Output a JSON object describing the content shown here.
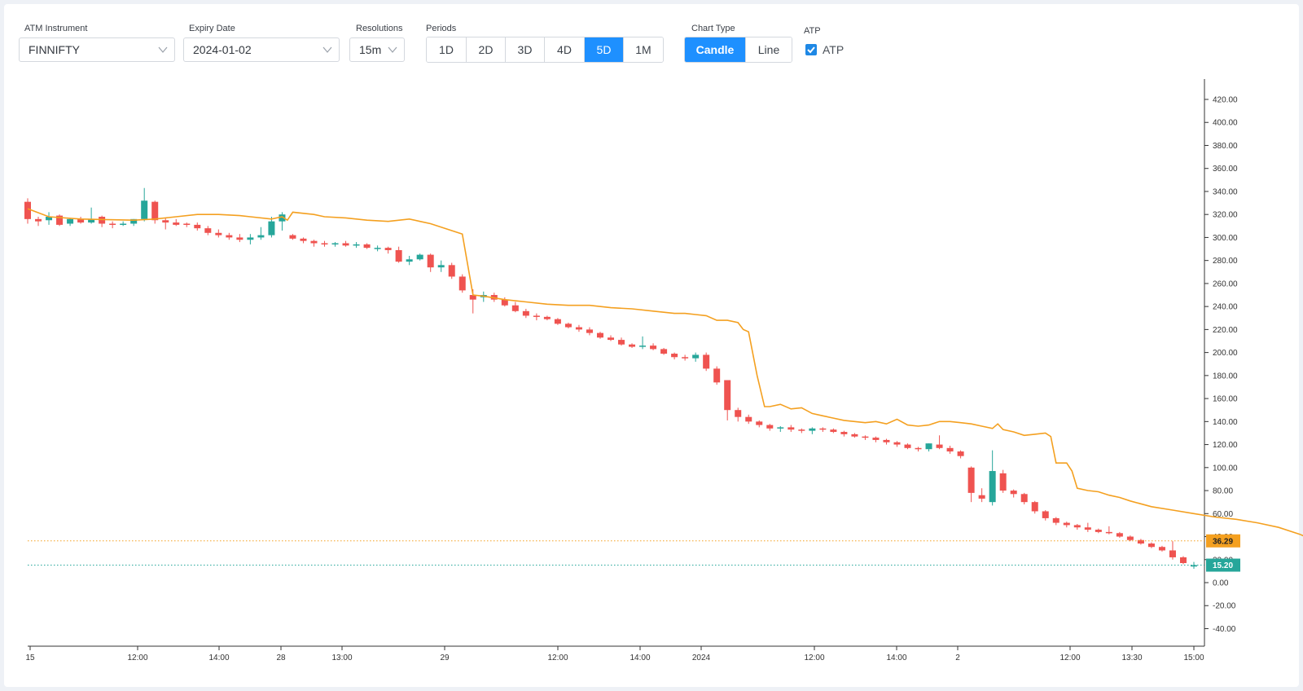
{
  "controls": {
    "instrument": {
      "label": "ATM Instrument",
      "value": "FINNIFTY"
    },
    "expiry": {
      "label": "Expiry Date",
      "value": "2024-01-02"
    },
    "resolution": {
      "label": "Resolutions",
      "value": "15m"
    },
    "periods": {
      "label": "Periods",
      "options": [
        "1D",
        "2D",
        "3D",
        "4D",
        "5D",
        "1M"
      ],
      "selected": "5D"
    },
    "chart_type": {
      "label": "Chart Type",
      "options": [
        "Candle",
        "Line"
      ],
      "selected": "Candle"
    },
    "atp": {
      "label": "ATP",
      "checkbox_label": "ATP",
      "checked": true
    }
  },
  "colors": {
    "accent": "#1e90ff",
    "up": "#26a69a",
    "down": "#ef5350",
    "atp_line": "#f4a020"
  },
  "chart_data": {
    "type": "candlestick",
    "series": [
      {
        "name": "ATP"
      }
    ],
    "y_ticks": [
      "420.00",
      "400.00",
      "380.00",
      "360.00",
      "340.00",
      "320.00",
      "300.00",
      "280.00",
      "260.00",
      "240.00",
      "220.00",
      "200.00",
      "180.00",
      "160.00",
      "140.00",
      "120.00",
      "100.00",
      "80.00",
      "60.00",
      "40.00",
      "20.00",
      "0.00",
      "-20.00",
      "-40.00"
    ],
    "ylim": [
      -50,
      430
    ],
    "x_ticks": [
      "15",
      "12:00",
      "14:00",
      "28",
      "13:00",
      "29",
      "12:00",
      "14:00",
      "2024",
      "12:00",
      "14:00",
      "2",
      "12:00",
      "13:30",
      "15:00"
    ],
    "price_labels": [
      {
        "name": "ATP",
        "value": "36.29",
        "color": "#f4a020"
      },
      {
        "name": "last",
        "value": "15.20",
        "color": "#26a69a"
      }
    ],
    "candles": [
      [
        331,
        334,
        312,
        316
      ],
      [
        316,
        318,
        310,
        314
      ],
      [
        315,
        322,
        311,
        318
      ],
      [
        319,
        320,
        310,
        311
      ],
      [
        312,
        317,
        310,
        316
      ],
      [
        316,
        318,
        312,
        313
      ],
      [
        313,
        326,
        312,
        316
      ],
      [
        318,
        319,
        309,
        312
      ],
      [
        312,
        314,
        308,
        311
      ],
      [
        311,
        314,
        310,
        312
      ],
      [
        312,
        316,
        310,
        316
      ],
      [
        316,
        343,
        314,
        332
      ],
      [
        331,
        332,
        312,
        315
      ],
      [
        315,
        317,
        307,
        313
      ],
      [
        313,
        316,
        310,
        311
      ],
      [
        312,
        313,
        309,
        311
      ],
      [
        311,
        313,
        306,
        308
      ],
      [
        308,
        310,
        302,
        304
      ],
      [
        304,
        307,
        300,
        302
      ],
      [
        302,
        304,
        298,
        300
      ],
      [
        300,
        303,
        296,
        298
      ],
      [
        298,
        303,
        294,
        300
      ],
      [
        300,
        309,
        298,
        302
      ],
      [
        302,
        318,
        300,
        314
      ],
      [
        314,
        322,
        306,
        320
      ],
      [
        302,
        303,
        298,
        299
      ],
      [
        299,
        300,
        295,
        297
      ],
      [
        297,
        298,
        292,
        295
      ],
      [
        295,
        297,
        292,
        294
      ],
      [
        294,
        296,
        292,
        295
      ],
      [
        295,
        297,
        292,
        293
      ],
      [
        293,
        296,
        291,
        294
      ],
      [
        294,
        295,
        290,
        291
      ],
      [
        291,
        293,
        288,
        291
      ],
      [
        291,
        292,
        286,
        289
      ],
      [
        289,
        292,
        278,
        279
      ],
      [
        279,
        284,
        276,
        281
      ],
      [
        281,
        286,
        280,
        285
      ],
      [
        285,
        286,
        270,
        274
      ],
      [
        274,
        280,
        270,
        276
      ],
      [
        276,
        278,
        264,
        266
      ],
      [
        266,
        268,
        252,
        254
      ],
      [
        250,
        255,
        234,
        246
      ],
      [
        248,
        253,
        244,
        250
      ],
      [
        250,
        252,
        244,
        246
      ],
      [
        246,
        248,
        240,
        241
      ],
      [
        241,
        244,
        235,
        236
      ],
      [
        236,
        238,
        230,
        232
      ],
      [
        232,
        234,
        228,
        231
      ],
      [
        231,
        232,
        228,
        229
      ],
      [
        229,
        230,
        224,
        225
      ],
      [
        225,
        226,
        221,
        222
      ],
      [
        222,
        224,
        218,
        220
      ],
      [
        220,
        222,
        215,
        217
      ],
      [
        217,
        218,
        212,
        213
      ],
      [
        213,
        215,
        210,
        211
      ],
      [
        211,
        213,
        206,
        207
      ],
      [
        207,
        208,
        204,
        205
      ],
      [
        205,
        214,
        203,
        206
      ],
      [
        206,
        208,
        202,
        203
      ],
      [
        203,
        204,
        198,
        199
      ],
      [
        199,
        200,
        194,
        196
      ],
      [
        196,
        198,
        193,
        195
      ],
      [
        195,
        200,
        192,
        198
      ],
      [
        198,
        200,
        184,
        186
      ],
      [
        186,
        188,
        172,
        174
      ],
      [
        176,
        176,
        141,
        150
      ],
      [
        150,
        152,
        140,
        144
      ],
      [
        144,
        146,
        138,
        140
      ],
      [
        140,
        141,
        135,
        137
      ],
      [
        137,
        138,
        132,
        134
      ],
      [
        134,
        136,
        131,
        135
      ],
      [
        135,
        137,
        131,
        133
      ],
      [
        133,
        134,
        130,
        132
      ],
      [
        132,
        135,
        129,
        134
      ],
      [
        134,
        135,
        131,
        133
      ],
      [
        133,
        134,
        130,
        131
      ],
      [
        131,
        132,
        127,
        129
      ],
      [
        129,
        130,
        126,
        127
      ],
      [
        127,
        128,
        124,
        126
      ],
      [
        126,
        127,
        122,
        124
      ],
      [
        124,
        125,
        120,
        122
      ],
      [
        122,
        123,
        118,
        120
      ],
      [
        120,
        121,
        116,
        117
      ],
      [
        117,
        118,
        114,
        116
      ],
      [
        116,
        121,
        114,
        121
      ],
      [
        120,
        128,
        116,
        117
      ],
      [
        117,
        119,
        112,
        114
      ],
      [
        114,
        115,
        108,
        110
      ],
      [
        100,
        101,
        70,
        78
      ],
      [
        76,
        82,
        70,
        73
      ],
      [
        70,
        115,
        67,
        97
      ],
      [
        95,
        98,
        78,
        80
      ],
      [
        80,
        81,
        74,
        77
      ],
      [
        77,
        78,
        68,
        70
      ],
      [
        70,
        71,
        60,
        62
      ],
      [
        62,
        63,
        54,
        56
      ],
      [
        56,
        57,
        50,
        52
      ],
      [
        52,
        53,
        48,
        50
      ],
      [
        50,
        51,
        46,
        48
      ],
      [
        48,
        52,
        44,
        46
      ],
      [
        46,
        47,
        43,
        44
      ],
      [
        44,
        49,
        42,
        43
      ],
      [
        43,
        44,
        39,
        40
      ],
      [
        40,
        41,
        36,
        37
      ],
      [
        37,
        38,
        33,
        34
      ],
      [
        34,
        35,
        30,
        31
      ],
      [
        31,
        32,
        27,
        28
      ],
      [
        28,
        36,
        20,
        22
      ],
      [
        22,
        23,
        16,
        17
      ],
      [
        14,
        18,
        12,
        15.2
      ]
    ],
    "atp": [
      [
        0,
        325
      ],
      [
        2,
        318
      ],
      [
        5,
        316
      ],
      [
        10,
        315
      ],
      [
        12,
        316
      ],
      [
        14,
        318
      ],
      [
        16,
        320
      ],
      [
        18,
        320
      ],
      [
        20,
        319
      ],
      [
        21,
        318
      ],
      [
        23,
        316
      ],
      [
        24,
        318
      ],
      [
        24.5,
        315
      ],
      [
        25,
        322
      ],
      [
        27,
        320
      ],
      [
        28,
        318
      ],
      [
        30,
        317
      ],
      [
        32,
        315
      ],
      [
        34,
        314
      ],
      [
        36,
        316
      ],
      [
        37,
        314
      ],
      [
        38,
        312
      ],
      [
        40,
        306
      ],
      [
        41,
        303
      ],
      [
        42,
        250
      ],
      [
        43,
        249
      ],
      [
        45,
        246
      ],
      [
        47,
        244
      ],
      [
        49,
        242
      ],
      [
        51,
        241
      ],
      [
        53,
        241
      ],
      [
        55,
        239
      ],
      [
        57,
        238
      ],
      [
        59,
        236
      ],
      [
        61,
        234
      ],
      [
        62,
        234
      ],
      [
        63,
        233
      ],
      [
        64,
        232
      ],
      [
        65,
        228
      ],
      [
        66,
        228
      ],
      [
        67,
        226
      ],
      [
        67.5,
        220
      ],
      [
        68,
        218
      ],
      [
        68.8,
        180
      ],
      [
        69.5,
        153
      ],
      [
        70,
        153
      ],
      [
        71,
        155
      ],
      [
        72,
        151
      ],
      [
        73,
        152
      ],
      [
        74,
        147
      ],
      [
        75,
        145
      ],
      [
        76,
        143
      ],
      [
        77,
        141
      ],
      [
        78,
        140
      ],
      [
        79,
        139
      ],
      [
        80,
        140
      ],
      [
        81,
        138
      ],
      [
        82,
        142
      ],
      [
        83,
        137
      ],
      [
        84,
        136
      ],
      [
        85,
        137
      ],
      [
        86,
        140
      ],
      [
        87,
        140
      ],
      [
        88,
        139
      ],
      [
        89,
        138
      ],
      [
        90,
        136
      ],
      [
        91,
        134
      ],
      [
        91.5,
        138
      ],
      [
        92,
        133
      ],
      [
        93,
        131
      ],
      [
        94,
        128
      ],
      [
        95,
        129
      ],
      [
        96,
        130
      ],
      [
        96.5,
        127
      ],
      [
        97,
        104
      ],
      [
        97.5,
        104
      ],
      [
        98,
        104
      ],
      [
        98.5,
        97
      ],
      [
        99,
        82
      ],
      [
        100,
        80
      ],
      [
        101,
        79
      ],
      [
        102,
        76
      ],
      [
        103,
        74
      ],
      [
        104,
        71
      ],
      [
        106,
        66
      ],
      [
        108,
        63
      ],
      [
        110,
        60
      ],
      [
        112,
        57
      ],
      [
        114,
        55
      ],
      [
        116,
        52
      ],
      [
        118,
        48
      ],
      [
        119,
        45
      ],
      [
        120,
        42
      ],
      [
        121,
        38
      ],
      [
        122,
        36.29
      ]
    ]
  }
}
